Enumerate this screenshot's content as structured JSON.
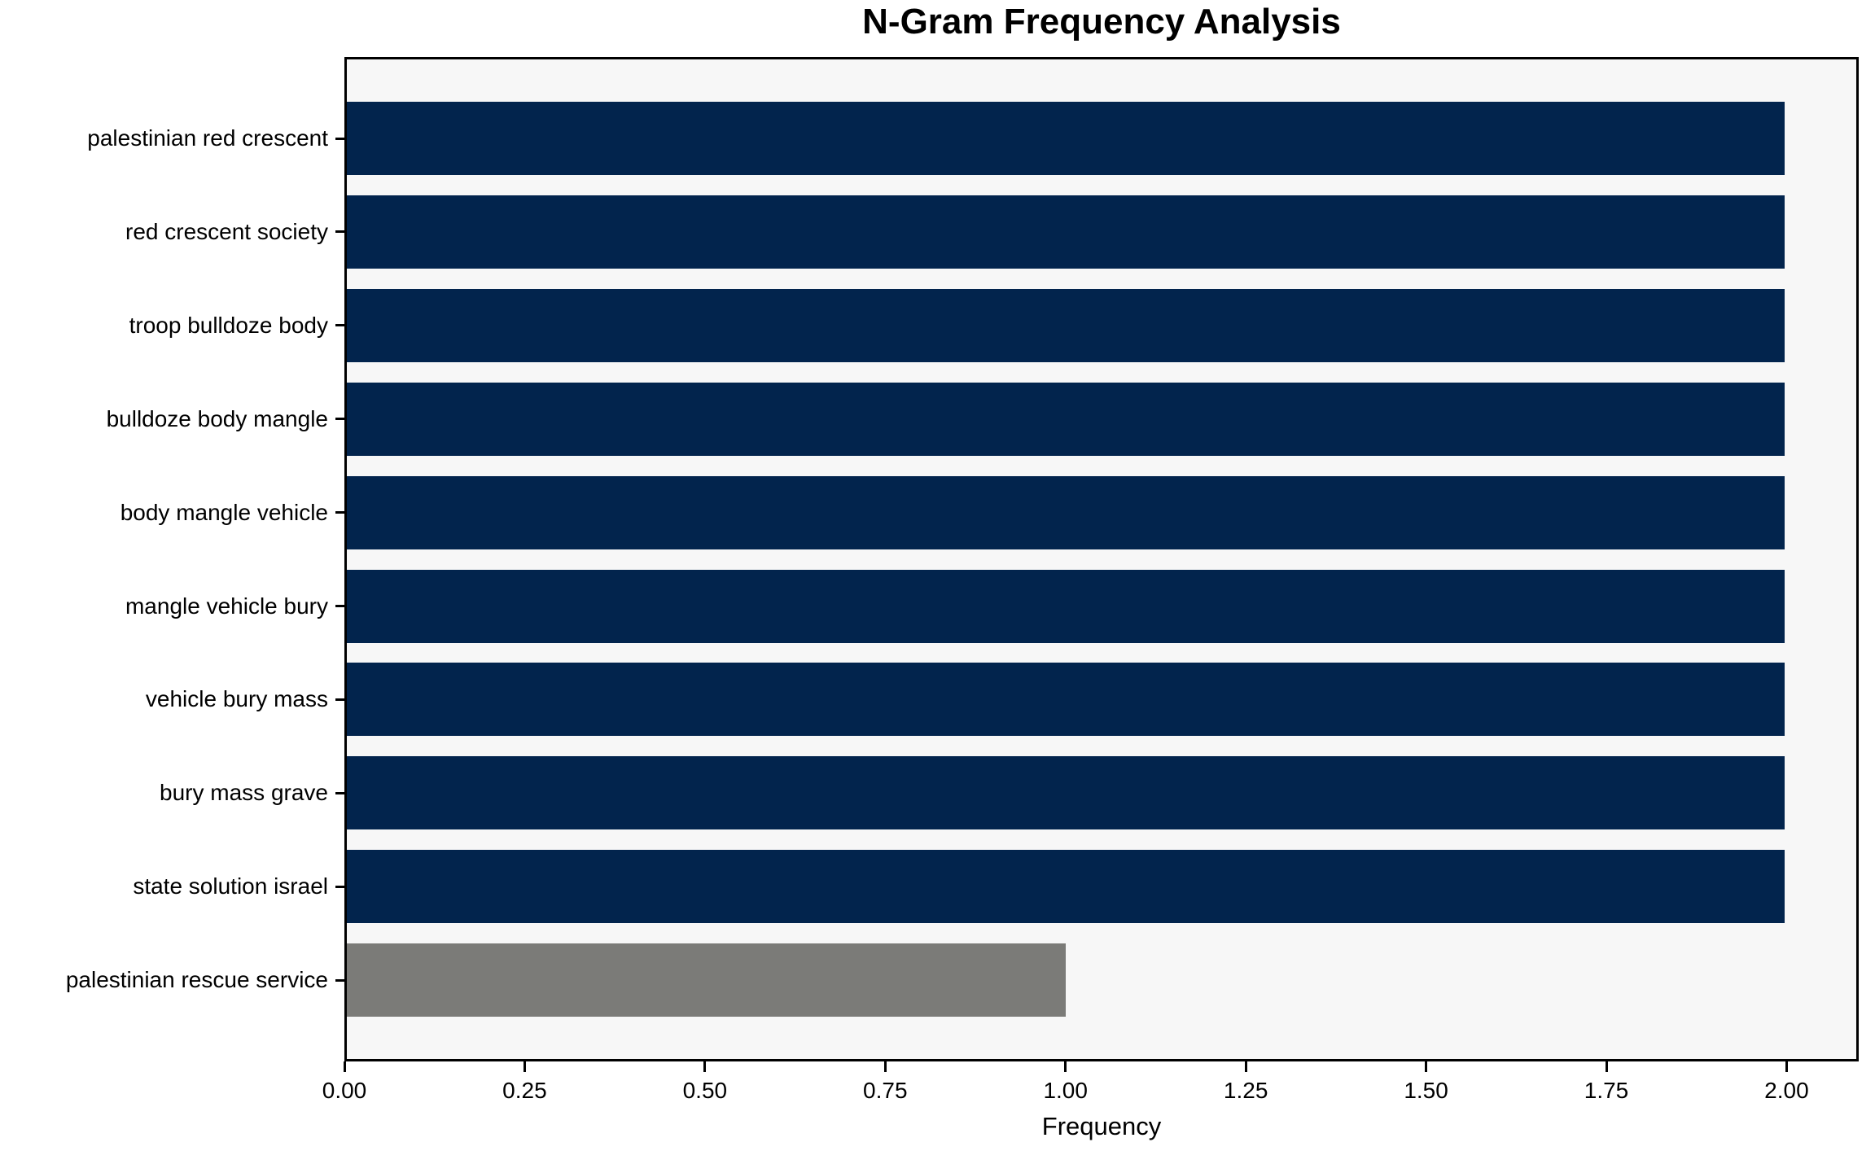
{
  "chart_data": {
    "type": "bar",
    "orientation": "horizontal",
    "title": "N-Gram Frequency Analysis",
    "xlabel": "Frequency",
    "ylabel": "",
    "categories": [
      "palestinian red crescent",
      "red crescent society",
      "troop bulldoze body",
      "bulldoze body mangle",
      "body mangle vehicle",
      "mangle vehicle bury",
      "vehicle bury mass",
      "bury mass grave",
      "state solution israel",
      "palestinian rescue service"
    ],
    "values": [
      2,
      2,
      2,
      2,
      2,
      2,
      2,
      2,
      2,
      1
    ],
    "bar_colors": [
      "#02244d",
      "#02244d",
      "#02244d",
      "#02244d",
      "#02244d",
      "#02244d",
      "#02244d",
      "#02244d",
      "#02244d",
      "#7b7b78"
    ],
    "xlim": [
      0,
      2.1
    ],
    "xticks": [
      0,
      0.25,
      0.5,
      0.75,
      1.0,
      1.25,
      1.5,
      1.75,
      2.0
    ],
    "xtick_labels": [
      "0.00",
      "0.25",
      "0.50",
      "0.75",
      "1.00",
      "1.25",
      "1.50",
      "1.75",
      "2.00"
    ],
    "grid": false,
    "legend": "none",
    "plot_background": "#f7f7f7",
    "figure_background": "#ffffff",
    "spine_color": "#000000"
  }
}
